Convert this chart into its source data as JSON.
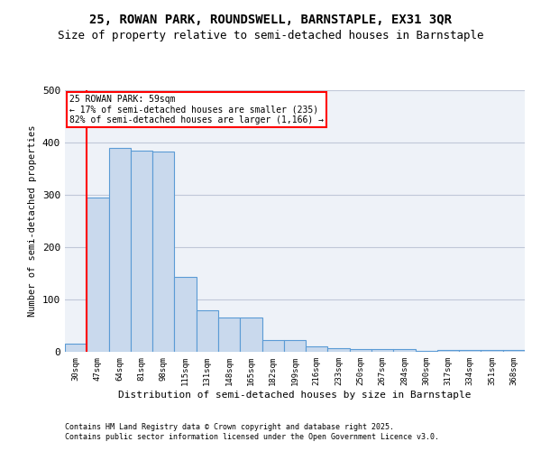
{
  "title": "25, ROWAN PARK, ROUNDSWELL, BARNSTAPLE, EX31 3QR",
  "subtitle": "Size of property relative to semi-detached houses in Barnstaple",
  "xlabel": "Distribution of semi-detached houses by size in Barnstaple",
  "ylabel": "Number of semi-detached properties",
  "categories": [
    "30sqm",
    "47sqm",
    "64sqm",
    "81sqm",
    "98sqm",
    "115sqm",
    "131sqm",
    "148sqm",
    "165sqm",
    "182sqm",
    "199sqm",
    "216sqm",
    "233sqm",
    "250sqm",
    "267sqm",
    "284sqm",
    "300sqm",
    "317sqm",
    "334sqm",
    "351sqm",
    "368sqm"
  ],
  "values": [
    15,
    295,
    390,
    385,
    383,
    143,
    80,
    65,
    65,
    22,
    22,
    10,
    7,
    6,
    6,
    6,
    2,
    4,
    4,
    4,
    4
  ],
  "bar_color": "#c9d9ed",
  "bar_edge_color": "#5b9bd5",
  "bar_edge_width": 0.8,
  "grid_color": "#c0c8d8",
  "bg_color": "#eef2f8",
  "red_line_index": 1,
  "annotation_text": "25 ROWAN PARK: 59sqm\n← 17% of semi-detached houses are smaller (235)\n82% of semi-detached houses are larger (1,166) →",
  "footnote1": "Contains HM Land Registry data © Crown copyright and database right 2025.",
  "footnote2": "Contains public sector information licensed under the Open Government Licence v3.0.",
  "ylim": [
    0,
    500
  ],
  "title_fontsize": 10,
  "subtitle_fontsize": 9
}
